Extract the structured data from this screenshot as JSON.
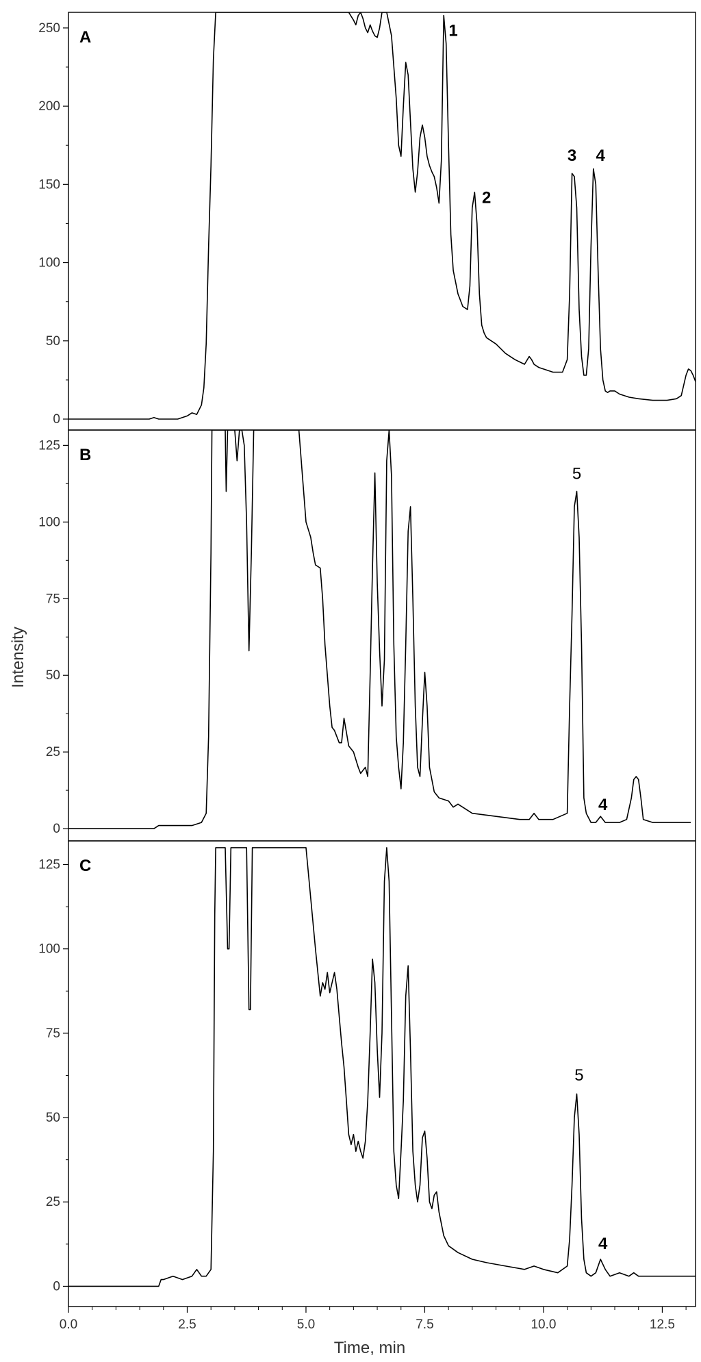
{
  "axes": {
    "xlabel": "Time, min",
    "ylabel": "Intensity",
    "x_ticks": [
      "0.0",
      "2.5",
      "5.0",
      "7.5",
      "10.0",
      "12.5"
    ]
  },
  "chart_data": [
    {
      "type": "line",
      "panel": "A",
      "xlim": [
        0,
        13.2
      ],
      "ylim": [
        -7,
        260
      ],
      "y_ticks": [
        "0",
        "50",
        "100",
        "150",
        "200",
        "250"
      ],
      "tick_values": [
        0,
        50,
        100,
        150,
        200,
        250
      ],
      "peak_labels": [
        {
          "text": "1",
          "x": 8.1,
          "y": 245,
          "bold": true
        },
        {
          "text": "2",
          "x": 8.8,
          "y": 138,
          "bold": true
        },
        {
          "text": "3",
          "x": 10.6,
          "y": 165,
          "bold": true
        },
        {
          "text": "4",
          "x": 11.2,
          "y": 165,
          "bold": true
        }
      ],
      "series": [
        {
          "x": [
            0.0,
            1.7,
            1.8,
            1.9,
            2.3,
            2.5,
            2.6,
            2.7,
            2.8,
            2.85,
            2.9,
            2.95,
            3.0,
            3.05,
            3.1,
            3.3,
            3.6,
            4.0,
            4.5,
            5.0,
            5.3,
            5.6,
            5.9,
            6.0,
            6.05,
            6.1,
            6.15,
            6.2,
            6.25,
            6.3,
            6.35,
            6.4,
            6.45,
            6.5,
            6.55,
            6.6,
            6.7,
            6.8,
            6.9,
            6.95,
            7.0,
            7.05,
            7.1,
            7.15,
            7.2,
            7.25,
            7.3,
            7.35,
            7.4,
            7.45,
            7.5,
            7.55,
            7.6,
            7.65,
            7.7,
            7.75,
            7.8,
            7.85,
            7.9,
            7.95,
            8.0,
            8.05,
            8.1,
            8.2,
            8.3,
            8.4,
            8.45,
            8.5,
            8.55,
            8.6,
            8.65,
            8.7,
            8.75,
            8.8,
            9.0,
            9.2,
            9.4,
            9.6,
            9.7,
            9.75,
            9.8,
            9.85,
            9.9,
            10.0,
            10.2,
            10.4,
            10.5,
            10.55,
            10.6,
            10.65,
            10.7,
            10.75,
            10.8,
            10.85,
            10.9,
            10.95,
            11.0,
            11.05,
            11.1,
            11.15,
            11.2,
            11.25,
            11.3,
            11.35,
            11.4,
            11.5,
            11.6,
            11.7,
            11.8,
            12.0,
            12.3,
            12.6,
            12.8,
            12.9,
            13.0,
            13.05,
            13.1,
            13.15,
            13.2
          ],
          "y": [
            0,
            0,
            1,
            0,
            0,
            2,
            4,
            3,
            9,
            20,
            48,
            110,
            162,
            230,
            260,
            260,
            260,
            260,
            260,
            260,
            260,
            260,
            260,
            255,
            252,
            258,
            260,
            256,
            250,
            247,
            252,
            248,
            245,
            244,
            250,
            260,
            260,
            245,
            205,
            175,
            168,
            200,
            228,
            220,
            190,
            160,
            145,
            158,
            180,
            188,
            180,
            168,
            162,
            158,
            155,
            148,
            138,
            165,
            258,
            240,
            175,
            118,
            95,
            80,
            72,
            70,
            85,
            135,
            145,
            125,
            80,
            60,
            55,
            52,
            48,
            42,
            38,
            35,
            40,
            38,
            35,
            34,
            33,
            32,
            30,
            30,
            38,
            80,
            157,
            155,
            135,
            70,
            40,
            28,
            28,
            45,
            110,
            160,
            150,
            95,
            45,
            25,
            18,
            17,
            18,
            18,
            16,
            15,
            14,
            13,
            12,
            12,
            13,
            15,
            28,
            32,
            31,
            28,
            24
          ]
        }
      ]
    },
    {
      "type": "line",
      "panel": "B",
      "xlim": [
        0,
        13.2
      ],
      "ylim": [
        -4,
        130
      ],
      "y_ticks": [
        "0",
        "25",
        "50",
        "75",
        "100",
        "125"
      ],
      "tick_values": [
        0,
        25,
        50,
        75,
        100,
        125
      ],
      "peak_labels": [
        {
          "text": "5",
          "x": 10.7,
          "y": 114,
          "bold": false
        },
        {
          "text": "4",
          "x": 11.25,
          "y": 6,
          "bold": true
        }
      ],
      "series": [
        {
          "x": [
            0.0,
            1.8,
            1.9,
            2.3,
            2.6,
            2.8,
            2.9,
            2.95,
            3.0,
            3.02,
            3.05,
            3.2,
            3.3,
            3.32,
            3.35,
            3.4,
            3.45,
            3.5,
            3.55,
            3.6,
            3.65,
            3.7,
            3.75,
            3.8,
            3.85,
            3.9,
            4.0,
            4.3,
            4.6,
            4.7,
            4.8,
            4.85,
            5.0,
            5.1,
            5.15,
            5.2,
            5.3,
            5.35,
            5.4,
            5.5,
            5.55,
            5.6,
            5.65,
            5.7,
            5.75,
            5.8,
            5.9,
            6.0,
            6.1,
            6.15,
            6.2,
            6.25,
            6.3,
            6.35,
            6.4,
            6.45,
            6.5,
            6.55,
            6.6,
            6.65,
            6.7,
            6.75,
            6.8,
            6.85,
            6.9,
            6.95,
            7.0,
            7.05,
            7.1,
            7.15,
            7.2,
            7.25,
            7.3,
            7.35,
            7.4,
            7.45,
            7.5,
            7.55,
            7.6,
            7.7,
            7.8,
            8.0,
            8.1,
            8.2,
            8.5,
            9.0,
            9.5,
            9.7,
            9.8,
            9.85,
            9.9,
            10.2,
            10.5,
            10.55,
            10.6,
            10.65,
            10.7,
            10.75,
            10.8,
            10.85,
            10.9,
            11.0,
            11.1,
            11.2,
            11.3,
            11.4,
            11.6,
            11.75,
            11.85,
            11.9,
            11.95,
            12.0,
            12.05,
            12.1,
            12.3,
            12.6,
            12.9,
            13.0,
            13.1
          ],
          "y": [
            0,
            0,
            1,
            1,
            1,
            2,
            5,
            30,
            90,
            130,
            130,
            130,
            130,
            110,
            130,
            130,
            130,
            130,
            120,
            130,
            130,
            125,
            100,
            58,
            90,
            130,
            130,
            130,
            130,
            130,
            130,
            130,
            100,
            95,
            90,
            86,
            85,
            75,
            60,
            40,
            33,
            32,
            30,
            28,
            28,
            36,
            27,
            25,
            20,
            18,
            19,
            20,
            17,
            50,
            85,
            116,
            80,
            58,
            40,
            55,
            120,
            130,
            115,
            60,
            30,
            20,
            13,
            28,
            60,
            97,
            105,
            75,
            40,
            20,
            17,
            35,
            51,
            40,
            20,
            12,
            10,
            9,
            7,
            8,
            5,
            4,
            3,
            3,
            5,
            4,
            3,
            3,
            5,
            40,
            70,
            105,
            110,
            95,
            60,
            10,
            5,
            2,
            2,
            4,
            2,
            2,
            2,
            3,
            10,
            16,
            17,
            16,
            10,
            3,
            2,
            2,
            2,
            2,
            2
          ]
        }
      ]
    },
    {
      "type": "line",
      "panel": "C",
      "xlim": [
        0,
        13.2
      ],
      "ylim": [
        -6,
        132
      ],
      "y_ticks": [
        "0",
        "25",
        "50",
        "75",
        "100",
        "125"
      ],
      "tick_values": [
        0,
        25,
        50,
        75,
        100,
        125
      ],
      "peak_labels": [
        {
          "text": "5",
          "x": 10.75,
          "y": 61,
          "bold": false
        },
        {
          "text": "4",
          "x": 11.25,
          "y": 11,
          "bold": true
        }
      ],
      "series": [
        {
          "x": [
            0.0,
            1.9,
            1.95,
            2.0,
            2.2,
            2.4,
            2.6,
            2.7,
            2.75,
            2.8,
            2.9,
            3.0,
            3.05,
            3.08,
            3.1,
            3.3,
            3.35,
            3.38,
            3.42,
            3.45,
            3.5,
            3.75,
            3.8,
            3.83,
            3.87,
            3.9,
            4.0,
            4.5,
            5.0,
            5.1,
            5.2,
            5.3,
            5.35,
            5.4,
            5.45,
            5.5,
            5.55,
            5.6,
            5.65,
            5.7,
            5.75,
            5.8,
            5.85,
            5.9,
            5.95,
            6.0,
            6.05,
            6.1,
            6.15,
            6.2,
            6.25,
            6.3,
            6.35,
            6.4,
            6.45,
            6.5,
            6.55,
            6.6,
            6.65,
            6.7,
            6.75,
            6.8,
            6.85,
            6.9,
            6.95,
            7.0,
            7.05,
            7.1,
            7.15,
            7.2,
            7.25,
            7.3,
            7.35,
            7.4,
            7.45,
            7.5,
            7.55,
            7.6,
            7.65,
            7.7,
            7.75,
            7.8,
            7.9,
            8.0,
            8.2,
            8.5,
            8.8,
            9.2,
            9.6,
            9.8,
            10.0,
            10.3,
            10.5,
            10.55,
            10.6,
            10.65,
            10.7,
            10.75,
            10.8,
            10.85,
            10.9,
            11.0,
            11.1,
            11.2,
            11.3,
            11.4,
            11.6,
            11.8,
            11.9,
            12.0,
            12.3,
            12.6,
            13.0,
            13.2
          ],
          "y": [
            0,
            0,
            2,
            2,
            3,
            2,
            3,
            5,
            4,
            3,
            3,
            5,
            40,
            110,
            130,
            130,
            100,
            100,
            130,
            130,
            130,
            130,
            82,
            82,
            130,
            130,
            130,
            130,
            130,
            115,
            100,
            86,
            90,
            88,
            93,
            87,
            90,
            93,
            88,
            80,
            72,
            65,
            55,
            45,
            42,
            45,
            40,
            43,
            40,
            38,
            43,
            55,
            75,
            97,
            90,
            70,
            56,
            75,
            120,
            130,
            120,
            80,
            40,
            30,
            26,
            40,
            55,
            86,
            95,
            70,
            40,
            30,
            25,
            30,
            44,
            46,
            38,
            25,
            23,
            27,
            28,
            22,
            15,
            12,
            10,
            8,
            7,
            6,
            5,
            6,
            5,
            4,
            6,
            14,
            30,
            50,
            57,
            45,
            20,
            8,
            4,
            3,
            4,
            8,
            5,
            3,
            4,
            3,
            4,
            3,
            3,
            3,
            3,
            3
          ]
        }
      ]
    }
  ]
}
